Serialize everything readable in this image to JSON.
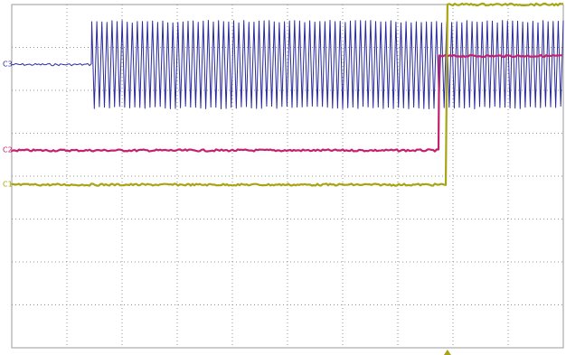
{
  "chart_data": {
    "type": "line",
    "grid": true,
    "x_divisions": 10,
    "y_divisions": 8,
    "channels": [
      {
        "id": "ch3",
        "label": "C3",
        "color": "#2a2a9e",
        "kind": "burst",
        "baseline_div": 2.6,
        "burst_start_div": 1.45,
        "burst_amplitude_div": 1.0,
        "cycles": 93
      },
      {
        "id": "ch2",
        "label": "C2",
        "color": "#c4206e",
        "kind": "step",
        "low_div": 0.6,
        "high_div": 2.8,
        "step_at_div": 7.75
      },
      {
        "id": "ch1",
        "label": "C1",
        "color": "#a8a414",
        "kind": "step",
        "low_div": -0.2,
        "high_div": 4.0,
        "step_at_div": 7.9
      }
    ],
    "trigger_marker_at_div": 7.9
  }
}
